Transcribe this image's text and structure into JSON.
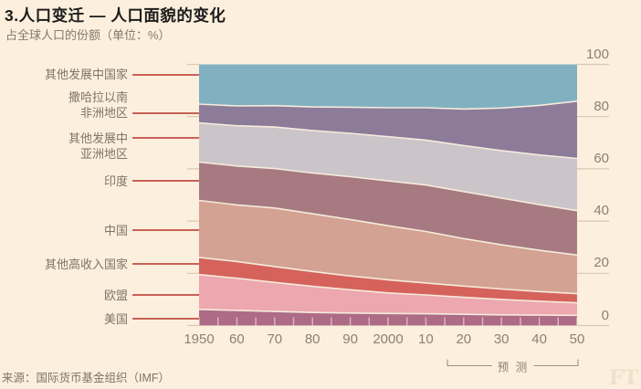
{
  "header": {
    "title": "3.人口变迁 — 人口面貌的变化",
    "subtitle": "占全球人口的份额（单位：%）"
  },
  "source_note": "来源：国际货币基金组织（IMF）",
  "watermark": "FT",
  "forecast": {
    "label": "预 测"
  },
  "colors": {
    "background": "#fcefdd",
    "title_text": "#1c1c1c",
    "axis_text": "#8b8174",
    "label_text": "#7d7569",
    "leader_line": "#c96157",
    "axis_tick": "#d9c9b2",
    "band_separator": "#f6ebdc",
    "bracket": "#9a9184",
    "watermark": "#eee0c9"
  },
  "chart_data": {
    "type": "area",
    "stacked": true,
    "title": "3.人口变迁 — 人口面貌的变化",
    "subtitle": "占全球人口的份额（单位：%）",
    "unit": "%",
    "grid": false,
    "legend_position": "left-labels",
    "x": [
      1950,
      1960,
      1970,
      1980,
      1990,
      2000,
      2010,
      2020,
      2030,
      2040,
      2050
    ],
    "x_tick_labels": [
      "1950",
      "60",
      "70",
      "80",
      "90",
      "2000",
      "10",
      "20",
      "30",
      "40",
      "50"
    ],
    "x_minor_tick_step_years": 5,
    "y_ticks": [
      0,
      20,
      40,
      60,
      80,
      100
    ],
    "ylim": [
      0,
      100
    ],
    "forecast_range_years": [
      2020,
      2050
    ],
    "series": [
      {
        "key": "us",
        "label_lines": [
          "美国"
        ],
        "anchor_line": 0,
        "anchor_pct": 2.6,
        "color": "#ad6b86",
        "values": [
          6.2,
          5.8,
          5.4,
          5.0,
          4.8,
          4.6,
          4.5,
          4.3,
          4.1,
          4.0,
          3.9
        ]
      },
      {
        "key": "eu",
        "label_lines": [
          "欧盟"
        ],
        "anchor_line": 0,
        "anchor_pct": 11.7,
        "color": "#eca7af",
        "values": [
          13.3,
          12.3,
          11.1,
          10.0,
          8.9,
          7.9,
          7.2,
          6.5,
          5.9,
          5.3,
          4.8
        ]
      },
      {
        "key": "other-high-income",
        "label_lines": [
          "其他高收入国家"
        ],
        "anchor_line": 0,
        "anchor_pct": 23.6,
        "color": "#d5635c",
        "values": [
          6.6,
          6.4,
          6.1,
          5.7,
          5.3,
          5.0,
          4.6,
          4.3,
          4.0,
          3.7,
          3.5
        ]
      },
      {
        "key": "china",
        "label_lines": [
          "中国"
        ],
        "anchor_line": 0,
        "anchor_pct": 36.5,
        "color": "#d3a292",
        "values": [
          21.8,
          21.7,
          22.4,
          22.1,
          21.6,
          20.7,
          19.7,
          18.2,
          16.9,
          15.8,
          14.8
        ]
      },
      {
        "key": "india",
        "label_lines": [
          "印度"
        ],
        "anchor_line": 0,
        "anchor_pct": 55.4,
        "color": "#a67a80",
        "values": [
          14.7,
          14.9,
          15.1,
          15.6,
          16.4,
          17.2,
          17.8,
          18.0,
          17.9,
          17.5,
          17.0
        ]
      },
      {
        "key": "other-developing-asia",
        "label_lines": [
          "其他发展中",
          "亚洲地区"
        ],
        "anchor_line": 0,
        "anchor_pct": 71.8,
        "color": "#cbc4c9",
        "values": [
          15.0,
          15.4,
          15.9,
          16.3,
          16.6,
          16.9,
          17.2,
          17.6,
          18.2,
          19.0,
          20.0
        ]
      },
      {
        "key": "sub-saharan-africa",
        "label_lines": [
          "撒哈拉以南",
          "非洲地区"
        ],
        "anchor_line": 1,
        "anchor_pct": 81.3,
        "color": "#8c7c9a",
        "values": [
          7.2,
          7.6,
          8.2,
          9.0,
          10.0,
          11.1,
          12.4,
          14.0,
          16.3,
          19.0,
          21.9
        ]
      },
      {
        "key": "other-developing-countries",
        "label_lines": [
          "其他发展中国家"
        ],
        "anchor_line": 0,
        "anchor_pct": 96.0,
        "color": "#81b1c1",
        "values": [
          15.2,
          15.9,
          15.8,
          16.3,
          16.4,
          16.6,
          16.6,
          17.1,
          16.7,
          15.7,
          14.1
        ]
      }
    ]
  }
}
